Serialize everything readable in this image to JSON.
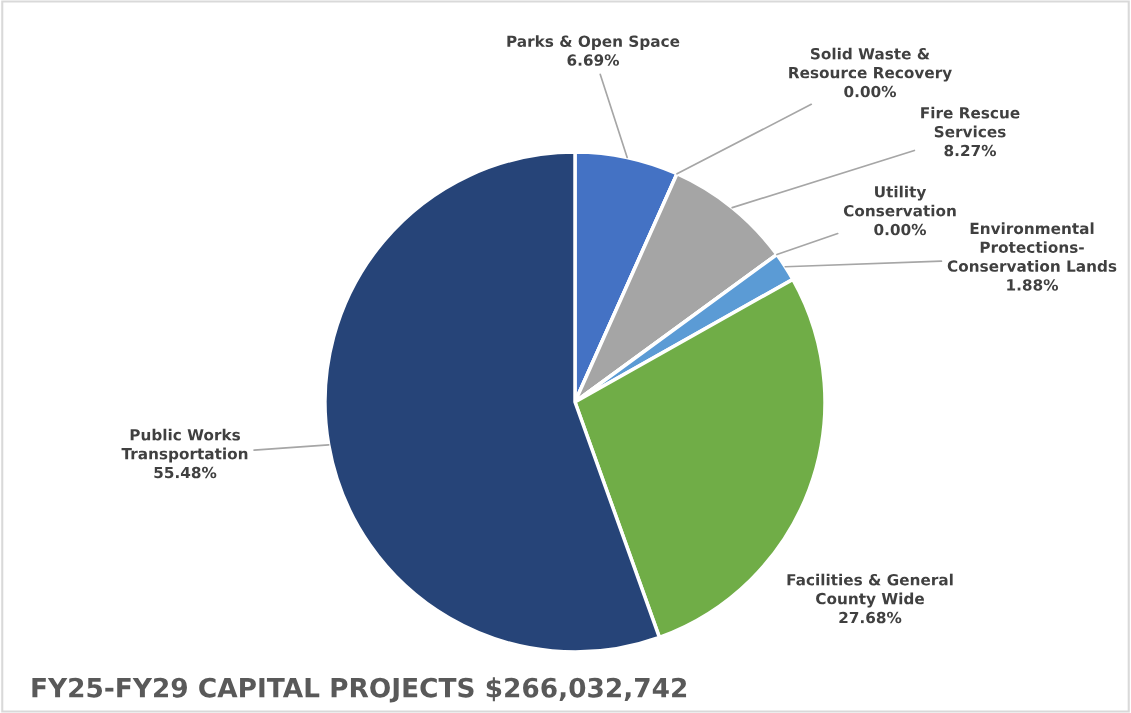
{
  "chart_data": {
    "type": "pie",
    "title": "FY25-FY29 CAPITAL PROJECTS $266,032,742",
    "categories": [
      "Parks & Open Space",
      "Solid Waste &\nResource Recovery",
      "Fire Rescue\nServices",
      "Utility\nConservation",
      "Environmental\nProtections-\nConservation Lands",
      "Facilities & General\nCounty Wide",
      "Public Works\nTransportation"
    ],
    "values": [
      6.69,
      0.0,
      8.27,
      0.0,
      1.88,
      27.68,
      55.48
    ],
    "colors": [
      "#4472c4",
      "#ed7d31",
      "#a5a5a5",
      "#ffc000",
      "#5b9bd5",
      "#70ad47",
      "#264478"
    ],
    "value_labels": [
      "6.69%",
      "0.00%",
      "8.27%",
      "0.00%",
      "1.88%",
      "27.68%",
      "55.48%"
    ]
  }
}
